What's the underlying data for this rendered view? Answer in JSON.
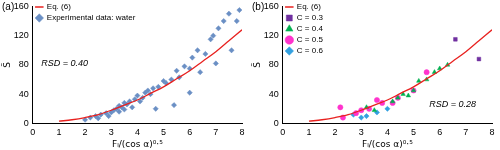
{
  "chart_data": [
    {
      "type": "scatter",
      "title": "(a)",
      "x_label": "Fₗ/(cos α)⁰·⁵",
      "y_label": "S̃",
      "annotation": "RSD = 0.40",
      "xlim": [
        0,
        8
      ],
      "xticks": [
        0,
        1,
        2,
        3,
        4,
        5,
        6,
        7,
        8
      ],
      "ylim": [
        0,
        160
      ],
      "yticks": [
        0,
        40,
        80,
        120,
        160
      ],
      "grid": false,
      "legend": "upper left",
      "series": [
        {
          "name": "Eq. (6)",
          "type": "line",
          "color": "#e8211f",
          "line_style": "solid",
          "x": [
            1,
            1.5,
            2,
            2.5,
            3,
            3.5,
            4,
            4.5,
            5,
            5.5,
            6,
            6.5,
            7,
            7.5,
            8
          ],
          "values": [
            3,
            5,
            8,
            12,
            18,
            25,
            32,
            41,
            50,
            61,
            72,
            85,
            98,
            113,
            128
          ]
        },
        {
          "name": "Experimental data: water",
          "type": "scatter",
          "color": "#6a8fc4",
          "marker": "diamond",
          "x": [
            2.0,
            2.2,
            2.4,
            2.5,
            2.6,
            2.8,
            2.9,
            3.0,
            3.1,
            3.2,
            3.3,
            3.3,
            3.4,
            3.5,
            3.5,
            3.6,
            3.7,
            3.8,
            3.9,
            4.0,
            4.1,
            4.2,
            4.3,
            4.4,
            4.5,
            4.6,
            4.7,
            4.8,
            5.0,
            5.1,
            5.3,
            5.4,
            5.5,
            5.6,
            5.8,
            6.0,
            6.0,
            6.1,
            6.3,
            6.4,
            6.6,
            6.8,
            6.9,
            7.0,
            7.1,
            7.3,
            7.5,
            7.6,
            7.8,
            7.9
          ],
          "values": [
            5,
            8,
            10,
            7,
            12,
            14,
            10,
            15,
            18,
            20,
            16,
            24,
            22,
            19,
            28,
            26,
            30,
            22,
            33,
            38,
            30,
            35,
            42,
            45,
            40,
            48,
            20,
            50,
            58,
            55,
            60,
            25,
            72,
            63,
            78,
            75,
            42,
            90,
            100,
            70,
            95,
            115,
            120,
            82,
            130,
            140,
            150,
            100,
            140,
            155
          ]
        }
      ]
    },
    {
      "type": "scatter",
      "title": "(b)",
      "x_label": "Fₗ/(cos α)⁰·⁵",
      "y_label": "S̃",
      "annotation": "RSD = 0.28",
      "xlim": [
        0,
        8
      ],
      "xticks": [
        0,
        1,
        2,
        3,
        4,
        5,
        6,
        7,
        8
      ],
      "ylim": [
        0,
        160
      ],
      "yticks": [
        0,
        40,
        80,
        120,
        160
      ],
      "grid": false,
      "legend": "upper left",
      "series": [
        {
          "name": "Eq. (6)",
          "type": "line",
          "color": "#e8211f",
          "line_style": "solid",
          "x": [
            1,
            1.5,
            2,
            2.5,
            3,
            3.5,
            4,
            4.5,
            5,
            5.5,
            6,
            6.5,
            7,
            7.5,
            8
          ],
          "values": [
            3,
            5,
            8,
            12,
            18,
            25,
            32,
            41,
            50,
            61,
            72,
            85,
            98,
            113,
            128
          ]
        },
        {
          "name": "C = 0.3",
          "type": "scatter",
          "color": "#7030a0",
          "marker": "square",
          "x": [
            6.6,
            7.5
          ],
          "values": [
            115,
            88
          ]
        },
        {
          "name": "C = 0.4",
          "type": "scatter",
          "color": "#00b050",
          "marker": "triangle",
          "x": [
            3.2,
            3.5,
            4.2,
            4.4,
            4.6,
            4.8,
            5.0,
            5.2,
            5.5,
            5.8,
            6.0,
            6.3
          ],
          "values": [
            22,
            18,
            30,
            35,
            40,
            38,
            45,
            58,
            60,
            70,
            75,
            80
          ]
        },
        {
          "name": "C = 0.5",
          "type": "scatter",
          "color": "#ff33cc",
          "marker": "circle",
          "x": [
            2.2,
            2.3,
            2.8,
            3.0,
            3.3,
            3.6,
            3.8,
            4.2,
            4.4,
            5.0,
            5.5
          ],
          "values": [
            22,
            8,
            14,
            18,
            20,
            32,
            28,
            28,
            35,
            45,
            70
          ]
        },
        {
          "name": "C = 0.6",
          "type": "scatter",
          "color": "#33a1e0",
          "marker": "diamond",
          "x": [
            2.7,
            3.0,
            3.2,
            3.6,
            4.0
          ],
          "values": [
            12,
            8,
            10,
            15,
            20
          ]
        }
      ]
    }
  ]
}
